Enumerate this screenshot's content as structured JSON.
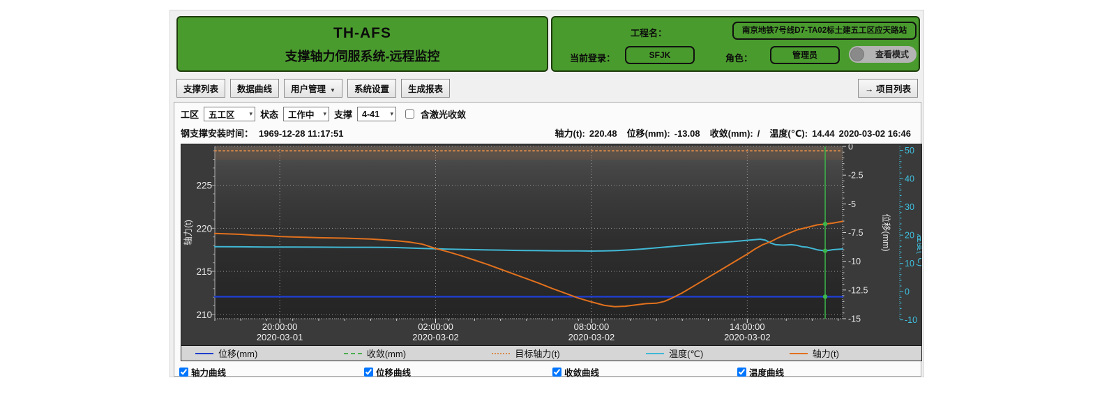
{
  "header": {
    "app_title": "TH-AFS",
    "app_subtitle": "支撑轴力伺服系统-远程监控",
    "panel_color": "#4a9b2e",
    "project_label": "工程名：",
    "project_name": "南京地铁7号线D7-TA02标土建五工区应天路站",
    "login_label": "当前登录：",
    "login_user": "SFJK",
    "role_label": "角色：",
    "role_value": "管理员",
    "view_mode_label": "查看模式"
  },
  "menu": {
    "items": [
      {
        "name": "support-list",
        "label": "支撑列表",
        "has_dropdown": false
      },
      {
        "name": "data-curve",
        "label": "数据曲线",
        "has_dropdown": false
      },
      {
        "name": "user-management",
        "label": "用户管理",
        "has_dropdown": true
      },
      {
        "name": "system-settings",
        "label": "系统设置",
        "has_dropdown": false
      },
      {
        "name": "generate-report",
        "label": "生成报表",
        "has_dropdown": false
      }
    ],
    "dropdown_arrow": "▼",
    "project_list_icon": "→",
    "project_list_label": "项目列表"
  },
  "filters": {
    "area_label": "工区",
    "area_value": "五工区",
    "status_label": "状态",
    "status_value": "工作中",
    "support_label": "支撑",
    "support_value": "4-41",
    "laser_label": "含激光收敛",
    "laser_checked": false
  },
  "info": {
    "install_label": "钢支撑安装时间：",
    "install_value": "1969-12-28 11:17:51",
    "readout": [
      {
        "label": "轴力(t):",
        "value": "220.48"
      },
      {
        "label": "位移(mm):",
        "value": "-13.08"
      },
      {
        "label": "收敛(mm):",
        "value": "/"
      },
      {
        "label": "温度(℃):",
        "value": "14.44"
      }
    ],
    "timestamp": "2020-03-02 16:46"
  },
  "chart_data": {
    "type": "line",
    "x_axis": {
      "unit": "hours_from_start",
      "range_hours": [
        0,
        24.17
      ],
      "ticks": [
        {
          "t": 2.5,
          "time": "20:00:00",
          "date": "2020-03-01"
        },
        {
          "t": 8.5,
          "time": "02:00:00",
          "date": "2020-03-02"
        },
        {
          "t": 14.5,
          "time": "08:00:00",
          "date": "2020-03-02"
        },
        {
          "t": 20.5,
          "time": "14:00:00",
          "date": "2020-03-02"
        }
      ]
    },
    "y_left": {
      "label": "轴力(t)",
      "range": [
        209.5,
        229.5
      ],
      "ticks": [
        225,
        220,
        215,
        210
      ],
      "color": "#e6e6e6"
    },
    "y_disp": {
      "label": "位移(mm)",
      "range": [
        -15,
        0
      ],
      "ticks": [
        0,
        -2.5,
        -5,
        -7.5,
        -10,
        -12.5,
        -15
      ],
      "color": "#e6e6e6"
    },
    "y_temp": {
      "label": "温度(℃)",
      "range": [
        -9.6,
        51.4
      ],
      "ticks": [
        50,
        40,
        30,
        20,
        10,
        0,
        -10
      ],
      "color": "#3fc1e0"
    },
    "target_axial_force": 229,
    "series": [
      {
        "name": "位移(mm)",
        "axis": "disp",
        "color": "#1f3ecb",
        "style": "solid",
        "width": 2.5,
        "points": [
          [
            0,
            -13.08
          ],
          [
            24.17,
            -13.08
          ]
        ]
      },
      {
        "name": "收敛(mm)",
        "axis": "disp",
        "color": "#4caf50",
        "style": "dashed",
        "width": 2,
        "points": []
      },
      {
        "name": "目标轴力(t)",
        "axis": "left",
        "color": "#d98a4a",
        "style": "dotted",
        "width": 2,
        "points": [
          [
            0,
            229
          ],
          [
            24.17,
            229
          ]
        ]
      },
      {
        "name": "温度(℃)",
        "axis": "temp",
        "color": "#41b8d5",
        "style": "solid",
        "width": 2,
        "points": [
          [
            0,
            15.9
          ],
          [
            1,
            15.85
          ],
          [
            2,
            15.8
          ],
          [
            3,
            15.8
          ],
          [
            4,
            15.75
          ],
          [
            5,
            15.7
          ],
          [
            6,
            15.7
          ],
          [
            6.5,
            15.65
          ],
          [
            7,
            15.6
          ],
          [
            7.5,
            15.45
          ],
          [
            8,
            15.3
          ],
          [
            8.5,
            15.15
          ],
          [
            9,
            15.05
          ],
          [
            9.5,
            14.95
          ],
          [
            10,
            14.85
          ],
          [
            10.5,
            14.75
          ],
          [
            11,
            14.7
          ],
          [
            11.5,
            14.6
          ],
          [
            12,
            14.55
          ],
          [
            12.5,
            14.5
          ],
          [
            13,
            14.45
          ],
          [
            13.5,
            14.4
          ],
          [
            14,
            14.4
          ],
          [
            14.5,
            14.35
          ],
          [
            15,
            14.4
          ],
          [
            15.5,
            14.55
          ],
          [
            16,
            14.8
          ],
          [
            16.5,
            15.1
          ],
          [
            17,
            15.5
          ],
          [
            17.5,
            15.9
          ],
          [
            18,
            16.3
          ],
          [
            18.5,
            16.7
          ],
          [
            19,
            17.1
          ],
          [
            19.5,
            17.45
          ],
          [
            20,
            17.75
          ],
          [
            20.3,
            18.0
          ],
          [
            20.6,
            18.25
          ],
          [
            21,
            18.55
          ],
          [
            21.2,
            18.2
          ],
          [
            21.4,
            17.2
          ],
          [
            21.6,
            16.6
          ],
          [
            21.9,
            16.45
          ],
          [
            22.2,
            16.6
          ],
          [
            22.4,
            16.4
          ],
          [
            22.6,
            15.9
          ],
          [
            22.8,
            15.75
          ],
          [
            23,
            15.3
          ],
          [
            23.2,
            14.8
          ],
          [
            23.5,
            14.44
          ],
          [
            23.8,
            14.85
          ],
          [
            24.17,
            15.1
          ]
        ]
      },
      {
        "name": "轴力(t)",
        "axis": "left",
        "color": "#e2711d",
        "style": "solid",
        "width": 2,
        "points": [
          [
            0,
            219.4
          ],
          [
            0.5,
            219.35
          ],
          [
            1,
            219.3
          ],
          [
            1.5,
            219.2
          ],
          [
            2,
            219.15
          ],
          [
            2.5,
            219.05
          ],
          [
            3,
            219.0
          ],
          [
            3.5,
            218.95
          ],
          [
            4,
            218.9
          ],
          [
            5,
            218.85
          ],
          [
            5.5,
            218.8
          ],
          [
            6,
            218.75
          ],
          [
            6.5,
            218.65
          ],
          [
            7,
            218.55
          ],
          [
            7.5,
            218.4
          ],
          [
            8,
            218.15
          ],
          [
            8.5,
            217.65
          ],
          [
            9,
            217.25
          ],
          [
            9.5,
            216.8
          ],
          [
            10,
            216.3
          ],
          [
            10.5,
            215.8
          ],
          [
            11,
            215.25
          ],
          [
            11.5,
            214.7
          ],
          [
            12,
            214.15
          ],
          [
            12.5,
            213.6
          ],
          [
            13,
            213.0
          ],
          [
            13.5,
            212.45
          ],
          [
            14,
            211.9
          ],
          [
            14.5,
            211.45
          ],
          [
            15,
            211.05
          ],
          [
            15.4,
            210.9
          ],
          [
            15.8,
            210.95
          ],
          [
            16.2,
            211.1
          ],
          [
            16.6,
            211.25
          ],
          [
            17,
            211.3
          ],
          [
            17.3,
            211.5
          ],
          [
            17.6,
            211.9
          ],
          [
            18,
            212.5
          ],
          [
            18.5,
            213.4
          ],
          [
            19,
            214.3
          ],
          [
            19.5,
            215.2
          ],
          [
            20,
            216.1
          ],
          [
            20.5,
            217.0
          ],
          [
            20.8,
            217.6
          ],
          [
            21.1,
            218.1
          ],
          [
            21.4,
            218.45
          ],
          [
            21.7,
            218.9
          ],
          [
            22,
            219.3
          ],
          [
            22.4,
            219.8
          ],
          [
            22.8,
            220.1
          ],
          [
            23.2,
            220.4
          ],
          [
            23.5,
            220.5
          ],
          [
            23.8,
            220.6
          ],
          [
            24.17,
            220.8
          ]
        ]
      }
    ],
    "cursor": {
      "t": 23.5,
      "color": "#3cb54a"
    }
  },
  "curve_toggles": [
    {
      "name": "axial-force-curve",
      "label": "轴力曲线",
      "checked": true
    },
    {
      "name": "displacement-curve",
      "label": "位移曲线",
      "checked": true
    },
    {
      "name": "convergence-curve",
      "label": "收敛曲线",
      "checked": true
    },
    {
      "name": "temperature-curve",
      "label": "温度曲线",
      "checked": true
    }
  ]
}
